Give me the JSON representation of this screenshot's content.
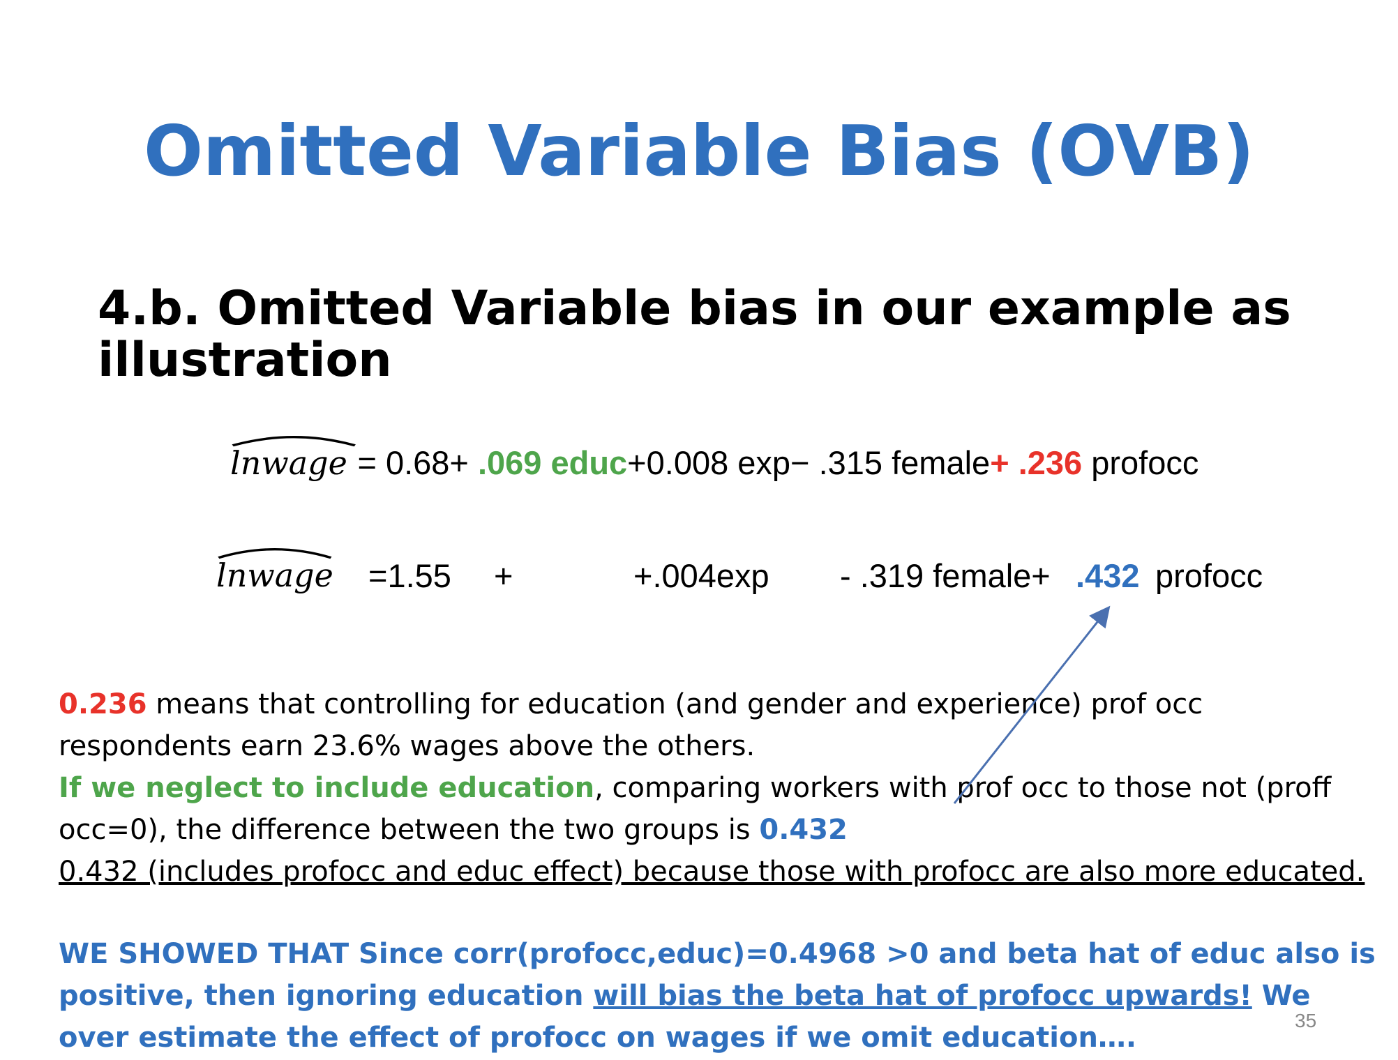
{
  "slide": {
    "title": "Omitted Variable Bias (OVB)",
    "subheading": "4.b. Omitted Variable bias in our example as illustration",
    "page_number": "35"
  },
  "equation1": {
    "lhs": "lnwage",
    "eq": " = 0.68+ ",
    "educ_term": ".069 educ",
    "mid": "+0.008 exp− .315 female",
    "profocc_plus": "+ .236",
    "tail": " profocc"
  },
  "equation2": {
    "lhs": "lnwage",
    "const": "=1.55",
    "plus": "+",
    "exp": "+.004exp",
    "female": "- .319 female+",
    "profocc_coef": ".432",
    "tail": "profocc"
  },
  "paragraph1": {
    "highlight": "0.236",
    "text": " means that controlling for education (and gender and experience) prof occ respondents earn 23.6% wages above the others."
  },
  "paragraph2": {
    "highlight": "If we neglect to include education",
    "text": ", comparing workers with prof occ to those not (proff occ=0), the difference between the two groups is ",
    "value": "0.432"
  },
  "paragraph3": {
    "text": "0.432 (includes profocc and educ effect) because those with profocc are also more educated."
  },
  "conclusion": {
    "part1": "WE  SHOWED THAT Since corr(profocc,educ)=0.4968 >0 and beta hat of educ also is positive, then ignoring education ",
    "underlined": "will bias the beta hat of profocc upwards!",
    "part2": " We over estimate the effect of profocc on wages if we omit education…."
  },
  "colors": {
    "title_blue": "#3070BE",
    "green": "#4EA54B",
    "red": "#E8322A",
    "arrow": "#4A70B0"
  }
}
